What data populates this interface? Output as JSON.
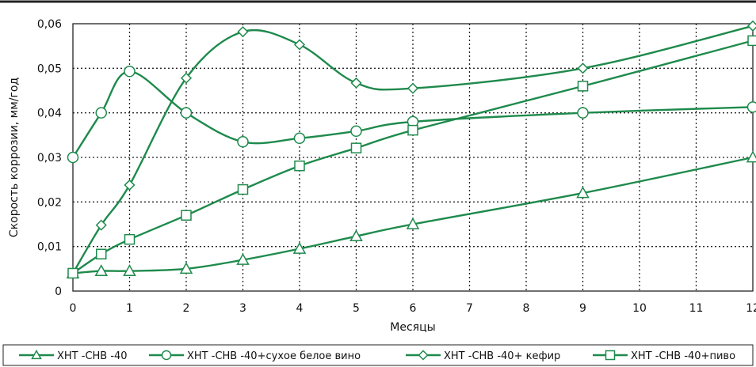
{
  "chart_data": {
    "type": "line",
    "title": "",
    "xlabel": "Месяцы",
    "ylabel": "Скорость коррозии, мм/год",
    "xlim": [
      0,
      12
    ],
    "ylim": [
      0,
      0.06
    ],
    "x_ticks": [
      "0",
      "1",
      "2",
      "3",
      "4",
      "5",
      "6",
      "7",
      "8",
      "9",
      "10",
      "11",
      "12"
    ],
    "y_ticks": [
      "0",
      "0,01",
      "0,02",
      "0,03",
      "0,04",
      "0,05",
      "0,06"
    ],
    "grid": true,
    "legend_position": "bottom",
    "line_color": "#1e8a4c",
    "series": [
      {
        "name": "ХНТ -СНВ -40",
        "marker": "triangle",
        "x": [
          0,
          0.5,
          1,
          2,
          3,
          4,
          5,
          6,
          9,
          12
        ],
        "values": [
          0.004,
          0.0045,
          0.0045,
          0.005,
          0.007,
          0.0095,
          0.0123,
          0.015,
          0.022,
          0.03
        ]
      },
      {
        "name": "ХНТ -СНВ -40+сухое  белое  вино",
        "marker": "circle",
        "x": [
          0,
          0.5,
          1,
          2,
          3,
          4,
          5,
          6,
          9,
          12
        ],
        "values": [
          0.03,
          0.04,
          0.0493,
          0.04,
          0.0335,
          0.0343,
          0.0359,
          0.038,
          0.04,
          0.0413
        ]
      },
      {
        "name": "ХНТ -СНВ -40+ кефир",
        "marker": "diamond",
        "x": [
          0,
          0.5,
          1,
          2,
          3,
          4,
          5,
          6,
          9,
          12
        ],
        "values": [
          0.004,
          0.0148,
          0.0238,
          0.0478,
          0.0582,
          0.0553,
          0.0467,
          0.0455,
          0.05,
          0.0595
        ]
      },
      {
        "name": "ХНТ -СНВ -40+пиво",
        "marker": "square",
        "x": [
          0,
          0.5,
          1,
          2,
          3,
          4,
          5,
          6,
          9,
          12
        ],
        "values": [
          0.004,
          0.0083,
          0.0116,
          0.017,
          0.0228,
          0.0281,
          0.0321,
          0.0361,
          0.046,
          0.0562
        ]
      }
    ]
  }
}
